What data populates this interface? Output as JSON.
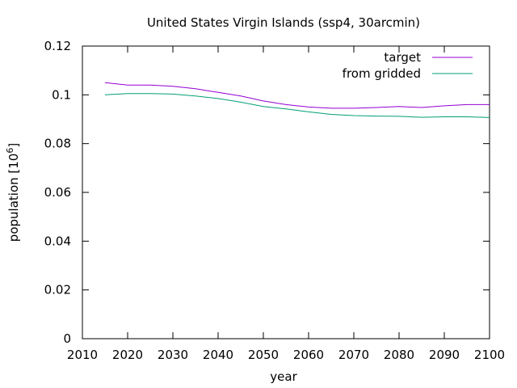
{
  "chart_data": {
    "type": "line",
    "title": "United States Virgin Islands (ssp4, 30arcmin)",
    "xlabel": "year",
    "ylabel": "population [10",
    "ylabel_sup": "6",
    "ylabel_close": "]",
    "xlim": [
      2010,
      2100
    ],
    "ylim": [
      0,
      0.12
    ],
    "xticks": [
      2010,
      2020,
      2030,
      2040,
      2050,
      2060,
      2070,
      2080,
      2090,
      2100
    ],
    "yticks": [
      0,
      0.02,
      0.04,
      0.06,
      0.08,
      0.1,
      0.12
    ],
    "xtick_labels": [
      "2010",
      "2020",
      "2030",
      "2040",
      "2050",
      "2060",
      "2070",
      "2080",
      "2090",
      "2100"
    ],
    "ytick_labels": [
      "0",
      "0.02",
      "0.04",
      "0.06",
      "0.08",
      "0.1",
      "0.12"
    ],
    "legend_position": "top-right",
    "grid": false,
    "series": [
      {
        "name": "target",
        "color": "#9400d3",
        "x": [
          2015,
          2020,
          2025,
          2030,
          2035,
          2040,
          2045,
          2050,
          2055,
          2060,
          2065,
          2070,
          2075,
          2080,
          2085,
          2090,
          2095,
          2100
        ],
        "y": [
          0.105,
          0.104,
          0.104,
          0.1035,
          0.1025,
          0.101,
          0.0995,
          0.0975,
          0.096,
          0.095,
          0.0945,
          0.0945,
          0.0948,
          0.0952,
          0.0948,
          0.0955,
          0.096,
          0.096
        ]
      },
      {
        "name": "from gridded",
        "color": "#009e73",
        "x": [
          2015,
          2020,
          2025,
          2030,
          2035,
          2040,
          2045,
          2050,
          2055,
          2060,
          2065,
          2070,
          2075,
          2080,
          2085,
          2090,
          2095,
          2100
        ],
        "y": [
          0.1,
          0.1005,
          0.1005,
          0.1003,
          0.0995,
          0.0985,
          0.097,
          0.0952,
          0.0942,
          0.093,
          0.092,
          0.0915,
          0.0913,
          0.0912,
          0.0908,
          0.091,
          0.091,
          0.0907
        ]
      }
    ]
  }
}
